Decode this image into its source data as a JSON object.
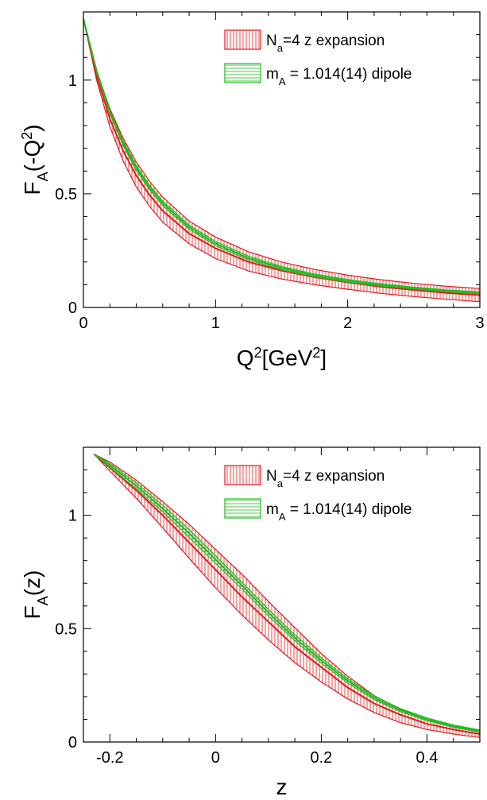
{
  "chart_data": [
    {
      "type": "line",
      "xlabel": {
        "base": "Q",
        "sup1": "2",
        "mid": "[GeV",
        "sup2": "2",
        "end": "]"
      },
      "ylabel": {
        "base": "F",
        "sub": "A",
        "mid": "(-Q",
        "sup": "2",
        "end": ")"
      },
      "xlim": [
        0,
        3
      ],
      "ylim": [
        0,
        1.3
      ],
      "x_ticks": [
        {
          "v": 0,
          "label": "0"
        },
        {
          "v": 1,
          "label": "1"
        },
        {
          "v": 2,
          "label": "2"
        },
        {
          "v": 3,
          "label": "3"
        }
      ],
      "y_ticks": [
        {
          "v": 0,
          "label": "0"
        },
        {
          "v": 0.5,
          "label": "0.5"
        },
        {
          "v": 1,
          "label": "1"
        }
      ],
      "x_minor_step": 0.2,
      "y_minor_step": 0.1,
      "legend_position": "top-right",
      "series": [
        {
          "name": {
            "prefix": "N",
            "sub": "a",
            "rest": "=4 z expansion"
          },
          "color": "#e31a1c",
          "hatch": "vertical",
          "x": [
            0.0,
            0.1,
            0.2,
            0.3,
            0.4,
            0.5,
            0.6,
            0.8,
            1.0,
            1.25,
            1.5,
            1.75,
            2.0,
            2.25,
            2.5,
            2.75,
            3.0
          ],
          "central": [
            1.27,
            1.02,
            0.83,
            0.69,
            0.58,
            0.495,
            0.425,
            0.325,
            0.26,
            0.2,
            0.162,
            0.133,
            0.11,
            0.091,
            0.077,
            0.064,
            0.054
          ],
          "upper": [
            1.27,
            1.04,
            0.875,
            0.745,
            0.64,
            0.555,
            0.485,
            0.38,
            0.31,
            0.245,
            0.2,
            0.167,
            0.142,
            0.122,
            0.106,
            0.093,
            0.083
          ],
          "lower": [
            1.27,
            1.0,
            0.795,
            0.645,
            0.53,
            0.445,
            0.375,
            0.28,
            0.215,
            0.16,
            0.125,
            0.1,
            0.08,
            0.062,
            0.048,
            0.036,
            0.025
          ]
        },
        {
          "name": {
            "prefix": "m",
            "sub": "A",
            "rest": " = 1.014(14) dipole"
          },
          "color": "#22bb22",
          "hatch": "horizontal",
          "x": [
            0.0,
            0.1,
            0.2,
            0.3,
            0.4,
            0.5,
            0.6,
            0.8,
            1.0,
            1.25,
            1.5,
            1.75,
            2.0,
            2.25,
            2.5,
            2.75,
            3.0
          ],
          "central": [
            1.27,
            1.04,
            0.86,
            0.723,
            0.614,
            0.528,
            0.458,
            0.353,
            0.281,
            0.217,
            0.173,
            0.141,
            0.117,
            0.099,
            0.085,
            0.073,
            0.064
          ],
          "upper": [
            1.27,
            1.046,
            0.868,
            0.733,
            0.625,
            0.538,
            0.468,
            0.362,
            0.29,
            0.225,
            0.18,
            0.147,
            0.123,
            0.104,
            0.089,
            0.077,
            0.068
          ],
          "lower": [
            1.27,
            1.034,
            0.852,
            0.713,
            0.603,
            0.518,
            0.448,
            0.344,
            0.272,
            0.209,
            0.166,
            0.135,
            0.111,
            0.094,
            0.081,
            0.069,
            0.06
          ]
        }
      ]
    },
    {
      "type": "line",
      "xlabel": {
        "base": "z"
      },
      "ylabel": {
        "base": "F",
        "sub": "A",
        "mid": "(z)"
      },
      "xlim": [
        -0.25,
        0.5
      ],
      "ylim": [
        0,
        1.3
      ],
      "x_ticks": [
        {
          "v": -0.2,
          "label": "-0.2"
        },
        {
          "v": 0,
          "label": "0"
        },
        {
          "v": 0.2,
          "label": "0.2"
        },
        {
          "v": 0.4,
          "label": "0.4"
        }
      ],
      "y_ticks": [
        {
          "v": 0,
          "label": "0"
        },
        {
          "v": 0.5,
          "label": "0.5"
        },
        {
          "v": 1,
          "label": "1"
        }
      ],
      "x_minor_step": 0.05,
      "y_minor_step": 0.1,
      "legend_position": "top-right",
      "series": [
        {
          "name": {
            "prefix": "N",
            "sub": "a",
            "rest": "=4 z expansion"
          },
          "color": "#e31a1c",
          "hatch": "vertical",
          "x": [
            -0.23,
            -0.2,
            -0.15,
            -0.1,
            -0.05,
            0.0,
            0.05,
            0.1,
            0.15,
            0.2,
            0.25,
            0.3,
            0.35,
            0.4,
            0.45,
            0.5
          ],
          "central": [
            1.27,
            1.21,
            1.11,
            1.0,
            0.88,
            0.76,
            0.64,
            0.53,
            0.42,
            0.33,
            0.24,
            0.17,
            0.12,
            0.08,
            0.055,
            0.035
          ],
          "upper": [
            1.27,
            1.235,
            1.155,
            1.06,
            0.96,
            0.85,
            0.74,
            0.62,
            0.505,
            0.39,
            0.29,
            0.205,
            0.145,
            0.1,
            0.07,
            0.048
          ],
          "lower": [
            1.27,
            1.195,
            1.075,
            0.945,
            0.81,
            0.68,
            0.56,
            0.45,
            0.35,
            0.265,
            0.19,
            0.13,
            0.085,
            0.055,
            0.035,
            0.02
          ]
        },
        {
          "name": {
            "prefix": "m",
            "sub": "A",
            "rest": " = 1.014(14) dipole"
          },
          "color": "#22bb22",
          "hatch": "horizontal",
          "x": [
            -0.23,
            -0.2,
            -0.15,
            -0.1,
            -0.05,
            0.0,
            0.05,
            0.1,
            0.15,
            0.2,
            0.25,
            0.3,
            0.35,
            0.4,
            0.45,
            0.5
          ],
          "central": [
            1.27,
            1.22,
            1.13,
            1.03,
            0.92,
            0.805,
            0.69,
            0.57,
            0.46,
            0.36,
            0.27,
            0.195,
            0.14,
            0.1,
            0.07,
            0.048
          ],
          "upper": [
            1.27,
            1.228,
            1.143,
            1.045,
            0.937,
            0.822,
            0.705,
            0.585,
            0.473,
            0.372,
            0.28,
            0.203,
            0.147,
            0.106,
            0.075,
            0.053
          ],
          "lower": [
            1.27,
            1.212,
            1.117,
            1.015,
            0.903,
            0.788,
            0.675,
            0.555,
            0.447,
            0.348,
            0.26,
            0.187,
            0.133,
            0.094,
            0.065,
            0.043
          ]
        }
      ]
    }
  ]
}
